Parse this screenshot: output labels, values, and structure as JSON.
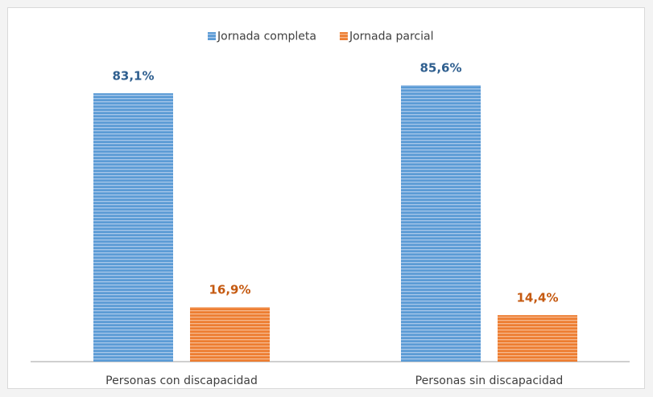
{
  "chart_data": {
    "type": "bar",
    "categories": [
      "Personas con discapacidad",
      "Personas sin discapacidad"
    ],
    "series": [
      {
        "name": "Jornada completa",
        "color": "#5b9bd5",
        "label_color": "#2f5f8f",
        "values": [
          83.1,
          85.6
        ],
        "value_labels": [
          "83,1%",
          "85,6%"
        ]
      },
      {
        "name": "Jornada parcial",
        "color": "#ed7d31",
        "label_color": "#c55a11",
        "values": [
          16.9,
          14.4
        ],
        "value_labels": [
          "16,9%",
          "14,4%"
        ]
      }
    ],
    "legend": "top"
  }
}
